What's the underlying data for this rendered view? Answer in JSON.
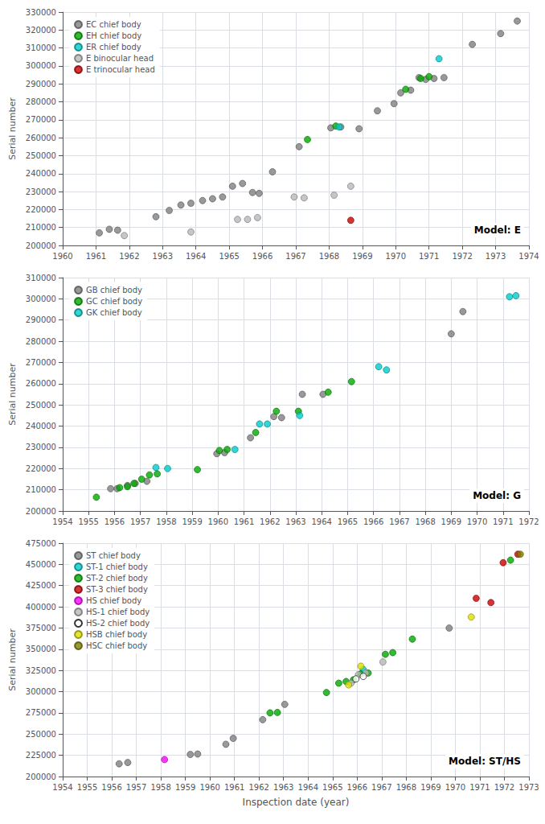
{
  "chart_data": [
    {
      "type": "scatter",
      "title": "Model: E",
      "ylabel": "Serial number",
      "xlim": [
        1960,
        1974
      ],
      "ylim": [
        200000,
        330000
      ],
      "xticks": [
        1960,
        1961,
        1962,
        1963,
        1964,
        1965,
        1966,
        1967,
        1968,
        1969,
        1970,
        1971,
        1972,
        1973,
        1974
      ],
      "yticks": [
        200000,
        210000,
        220000,
        230000,
        240000,
        250000,
        260000,
        270000,
        280000,
        290000,
        300000,
        310000,
        320000,
        330000
      ],
      "grid": true,
      "legend": "upper left",
      "series": [
        {
          "name": "EC chief body",
          "color": "#808080",
          "x": [
            1961.1,
            1961.4,
            1961.65,
            1962.8,
            1963.2,
            1963.55,
            1963.85,
            1964.2,
            1964.5,
            1964.8,
            1965.1,
            1965.4,
            1965.7,
            1965.9,
            1966.3,
            1967.1,
            1968.05,
            1968.35,
            1968.9,
            1969.45,
            1969.95,
            1970.15,
            1970.45,
            1970.7,
            1970.9,
            1971.15,
            1971.45,
            1972.3,
            1973.15,
            1973.65
          ],
          "values": [
            207000,
            209000,
            208500,
            216000,
            219500,
            222500,
            223500,
            225000,
            226000,
            227000,
            233000,
            234500,
            229500,
            229000,
            241000,
            255000,
            265500,
            266000,
            265000,
            275000,
            279000,
            285000,
            286500,
            293500,
            292500,
            293000,
            293500,
            312000,
            318000,
            325000
          ]
        },
        {
          "name": "EH chief body",
          "color": "#00aa00",
          "x": [
            1967.35,
            1968.2,
            1970.3,
            1970.75,
            1971.0
          ],
          "values": [
            259000,
            266500,
            287000,
            293000,
            294000
          ]
        },
        {
          "name": "ER chief body",
          "color": "#00cccc",
          "x": [
            1968.3,
            1971.3
          ],
          "values": [
            266000,
            304000
          ]
        },
        {
          "name": "E binocular head",
          "color": "#b8b8b8",
          "x": [
            1961.85,
            1963.85,
            1965.25,
            1965.55,
            1965.85,
            1966.95,
            1967.25,
            1968.15,
            1968.65
          ],
          "values": [
            205500,
            207500,
            214500,
            214500,
            215500,
            227000,
            226500,
            228000,
            233000
          ]
        },
        {
          "name": "E trinocular head",
          "color": "#cc0000",
          "x": [
            1968.65
          ],
          "values": [
            214000
          ]
        }
      ]
    },
    {
      "type": "scatter",
      "title": "Model: G",
      "ylabel": "Serial number",
      "xlim": [
        1954,
        1972
      ],
      "ylim": [
        200000,
        310000
      ],
      "xticks": [
        1954,
        1955,
        1956,
        1957,
        1958,
        1959,
        1960,
        1961,
        1962,
        1963,
        1964,
        1965,
        1966,
        1967,
        1968,
        1969,
        1970,
        1971,
        1972
      ],
      "yticks": [
        200000,
        210000,
        220000,
        230000,
        240000,
        250000,
        260000,
        270000,
        280000,
        290000,
        300000,
        310000
      ],
      "grid": true,
      "legend": "upper left",
      "series": [
        {
          "name": "GB chief body",
          "color": "#808080",
          "x": [
            1955.85,
            1956.1,
            1956.5,
            1956.8,
            1957.25,
            1959.95,
            1960.25,
            1961.25,
            1962.15,
            1962.45,
            1963.25,
            1964.05,
            1969.0,
            1969.45
          ],
          "values": [
            210500,
            210500,
            212000,
            213000,
            214000,
            227000,
            227500,
            234500,
            244500,
            244000,
            255000,
            255000,
            283500,
            294000
          ]
        },
        {
          "name": "GC chief body",
          "color": "#00aa00",
          "x": [
            1955.3,
            1956.2,
            1956.5,
            1956.75,
            1957.05,
            1957.35,
            1957.65,
            1959.2,
            1960.05,
            1960.35,
            1961.45,
            1962.25,
            1963.1,
            1964.25,
            1965.15
          ],
          "values": [
            206500,
            211000,
            211500,
            213000,
            215000,
            217000,
            217500,
            219500,
            228500,
            229000,
            237000,
            247000,
            247000,
            256000,
            261000
          ]
        },
        {
          "name": "GK chief body",
          "color": "#00cccc",
          "x": [
            1957.6,
            1958.05,
            1960.65,
            1961.6,
            1961.9,
            1963.15,
            1966.2,
            1966.5,
            1971.25,
            1971.5
          ],
          "values": [
            220500,
            220000,
            229000,
            241000,
            241000,
            245000,
            268000,
            266500,
            301000,
            301500
          ]
        }
      ]
    },
    {
      "type": "scatter",
      "title": "Model: ST/HS",
      "xlabel": "Inspection date (year)",
      "ylabel": "Serial number",
      "xlim": [
        1954,
        1973
      ],
      "ylim": [
        200000,
        475000
      ],
      "xticks": [
        1954,
        1955,
        1956,
        1957,
        1958,
        1959,
        1960,
        1961,
        1962,
        1963,
        1964,
        1965,
        1966,
        1967,
        1968,
        1969,
        1970,
        1971,
        1972,
        1973
      ],
      "yticks": [
        200000,
        225000,
        250000,
        275000,
        300000,
        325000,
        350000,
        375000,
        400000,
        425000,
        450000,
        475000
      ],
      "grid": true,
      "legend": "upper left",
      "series": [
        {
          "name": "ST chief body",
          "color": "#808080",
          "x": [
            1956.3,
            1956.65,
            1959.2,
            1959.5,
            1960.65,
            1960.95,
            1962.15,
            1963.05,
            1969.75
          ],
          "values": [
            215000,
            216500,
            226000,
            226500,
            238000,
            245000,
            267000,
            285000,
            375000
          ]
        },
        {
          "name": "ST-1 chief body",
          "color": "#00cccc",
          "x": [
            1966.25
          ],
          "values": [
            326000
          ]
        },
        {
          "name": "ST-2 chief body",
          "color": "#00aa00",
          "x": [
            1962.45,
            1962.75,
            1964.75,
            1965.25,
            1965.55,
            1965.85,
            1966.15,
            1966.45,
            1967.15,
            1967.45,
            1968.25,
            1972.25
          ],
          "values": [
            275000,
            275500,
            299000,
            310000,
            312000,
            314000,
            321000,
            322000,
            344000,
            346000,
            362000,
            455000
          ]
        },
        {
          "name": "ST-3 chief body",
          "color": "#cc0000",
          "x": [
            1970.85,
            1971.45,
            1971.95,
            1972.55
          ],
          "values": [
            410000,
            405000,
            452000,
            462000
          ]
        },
        {
          "name": "HS chief body",
          "color": "#ff00ff",
          "x": [
            1958.15
          ],
          "values": [
            220000
          ]
        },
        {
          "name": "HS-1 chief body",
          "color": "#b8b8b8",
          "x": [
            1965.75,
            1966.05,
            1966.35,
            1967.05
          ],
          "values": [
            310000,
            320000,
            322000,
            335000
          ]
        },
        {
          "name": "HS-2 chief body",
          "color": "#ffffff",
          "x": [
            1965.95,
            1966.25
          ],
          "values": [
            315000,
            318000
          ]
        },
        {
          "name": "HSB chief body",
          "color": "#dddd00",
          "x": [
            1965.65,
            1966.15,
            1970.65
          ],
          "values": [
            308000,
            330000,
            388000
          ]
        },
        {
          "name": "HSC chief body",
          "color": "#808000",
          "x": [
            1972.65
          ],
          "values": [
            462000
          ]
        }
      ]
    }
  ]
}
